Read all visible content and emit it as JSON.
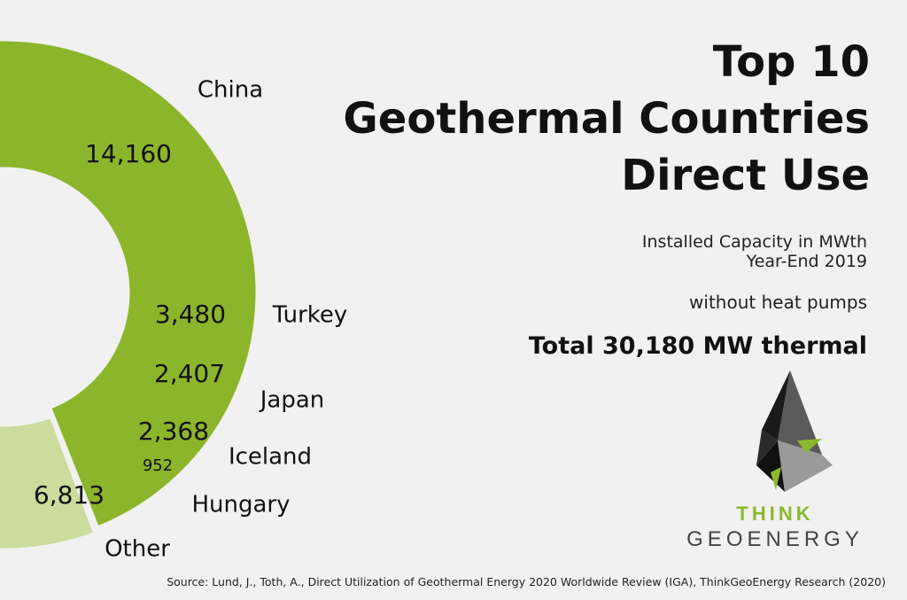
{
  "title": {
    "line1": "Top 10",
    "line2": "Geothermal Countries",
    "line3": "Direct Use"
  },
  "subtitle": {
    "line1": "Installed Capacity in MWth",
    "line2": "Year-End 2019",
    "line3": "without heat pumps"
  },
  "total": "Total 30,180 MW thermal",
  "logo": {
    "think": "THINK",
    "geoenergy": "GEOENERGY"
  },
  "source": "Source: Lund, J., Toth, A., Direct Utilization of Geothermal Energy 2020 Worldwide Review (IGA), ThinkGeoEnergy Research (2020)",
  "chart_data": {
    "type": "pie",
    "variant": "donut",
    "total": 30180,
    "unit": "MWth",
    "slices": [
      {
        "name": "China",
        "value": 14160,
        "label": "14,160",
        "color": "#8db52b",
        "exploded": false
      },
      {
        "name": "Turkey",
        "value": 3480,
        "label": "3,480",
        "color": "#cbdc9c",
        "exploded": true
      },
      {
        "name": "Japan",
        "value": 2407,
        "label": "2,407",
        "color": "#d9d9d9",
        "exploded": true
      },
      {
        "name": "Iceland",
        "value": 2368,
        "label": "2,368",
        "color": "#7a7a7a",
        "exploded": true
      },
      {
        "name": "Hungary",
        "value": 952,
        "label": "952",
        "color": "#4f7fcf",
        "exploded": true
      },
      {
        "name": "Other",
        "value": 6813,
        "label": "6,813",
        "color": "#a0b8de",
        "exploded": false
      }
    ]
  }
}
